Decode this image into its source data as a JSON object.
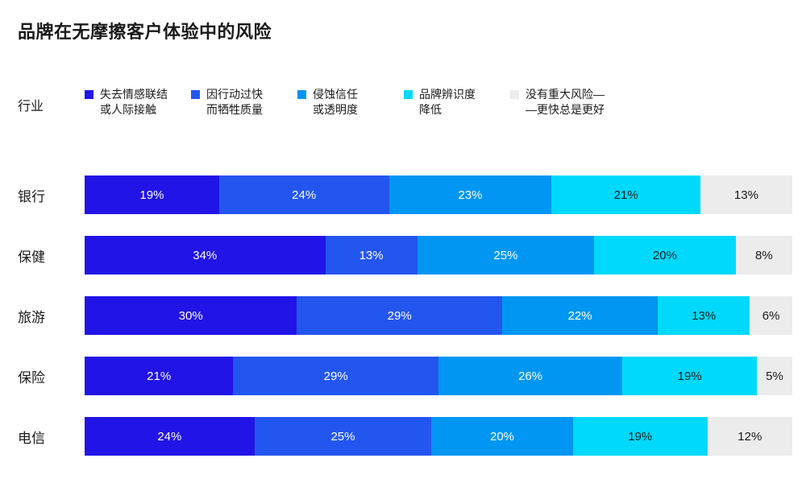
{
  "title": "品牌在无摩擦客户体验中的风险",
  "legend": {
    "axis_label": "行业",
    "items": [
      {
        "line1": "失去情感联结",
        "line2": "或人际接触",
        "color": "#2114E6"
      },
      {
        "line1": "因行动过快",
        "line2": "而牺牲质量",
        "color": "#2356EE"
      },
      {
        "line1": "侵蚀信任",
        "line2": "或透明度",
        "color": "#0096F2"
      },
      {
        "line1": "品牌辨识度",
        "line2": "降低",
        "color": "#00D9FB"
      },
      {
        "line1": "没有重大风险—",
        "line2": "—更快总是更好",
        "color": "#ECECEC"
      }
    ]
  },
  "chart_data": {
    "type": "bar",
    "orientation": "horizontal_stacked",
    "stacked": true,
    "value_unit": "percent",
    "xlim": [
      0,
      100
    ],
    "title": "品牌在无摩擦客户体验中的风险",
    "categories": [
      "银行",
      "保健",
      "旅游",
      "保险",
      "电信"
    ],
    "series": [
      {
        "name": "失去情感联结或人际接触",
        "color": "#2114E6",
        "label_color": "#FFFFFF",
        "values": [
          19,
          34,
          30,
          21,
          24
        ]
      },
      {
        "name": "因行动过快而牺牲质量",
        "color": "#2356EE",
        "label_color": "#FFFFFF",
        "values": [
          24,
          13,
          29,
          29,
          25
        ]
      },
      {
        "name": "侵蚀信任或透明度",
        "color": "#0096F2",
        "label_color": "#FFFFFF",
        "values": [
          23,
          25,
          22,
          26,
          20
        ]
      },
      {
        "name": "品牌辨识度降低",
        "color": "#00D9FB",
        "label_color": "#1A1A1A",
        "values": [
          21,
          20,
          13,
          19,
          19
        ]
      },
      {
        "name": "没有重大风险——更快总是更好",
        "color": "#ECECEC",
        "label_color": "#1A1A1A",
        "values": [
          13,
          8,
          6,
          5,
          12
        ]
      }
    ],
    "legend_position": "top"
  }
}
